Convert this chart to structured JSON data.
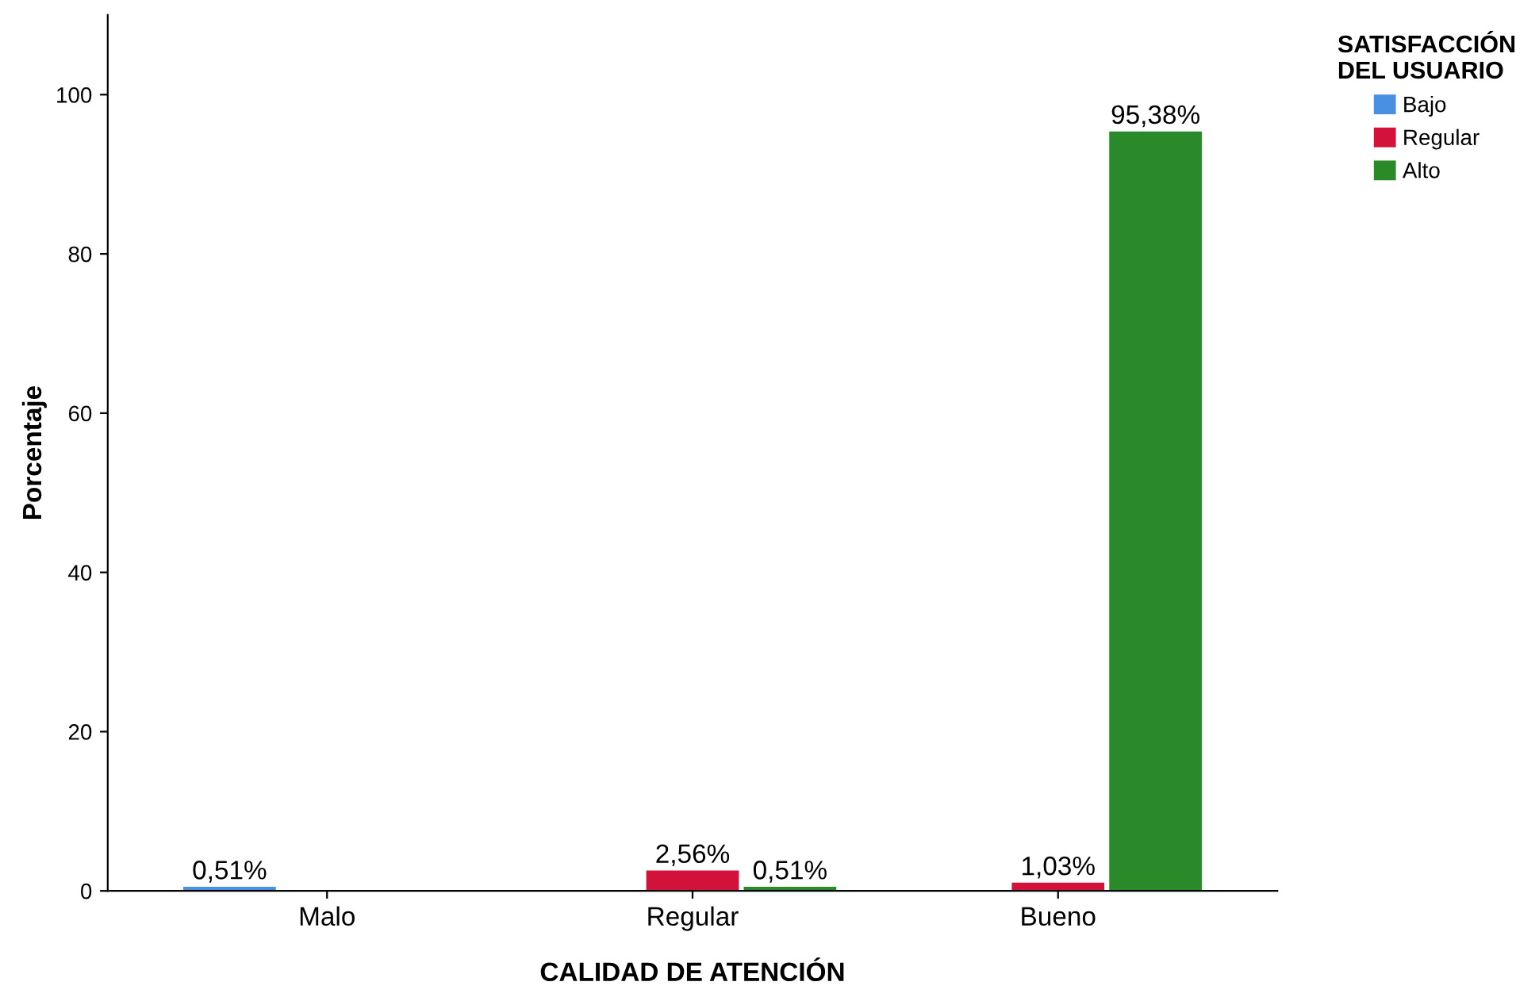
{
  "chart_data": {
    "type": "bar",
    "xlabel": "CALIDAD DE ATENCIÓN",
    "ylabel": "Porcentaje",
    "legend_title": "SATISFACCIÓN\nDEL USUARIO",
    "categories": [
      "Malo",
      "Regular",
      "Bueno"
    ],
    "series": [
      {
        "name": "Bajo",
        "color": "#4a90e2",
        "values": [
          0.51,
          null,
          null
        ],
        "value_labels": [
          "0,51%",
          null,
          null
        ]
      },
      {
        "name": "Regular",
        "color": "#d2123a",
        "values": [
          null,
          2.56,
          1.03
        ],
        "value_labels": [
          null,
          "2,56%",
          "1,03%"
        ]
      },
      {
        "name": "Alto",
        "color": "#2a8a2a",
        "values": [
          null,
          0.51,
          95.38
        ],
        "value_labels": [
          null,
          "0,51%",
          "95,38%"
        ]
      }
    ],
    "ylim": [
      0,
      110
    ],
    "yticks": [
      0,
      20,
      40,
      60,
      80,
      100
    ],
    "grid": false,
    "legend": "top right"
  }
}
